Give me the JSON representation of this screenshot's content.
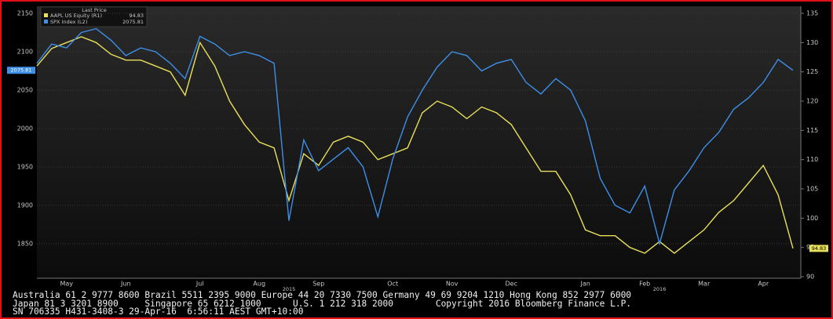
{
  "chart_data": {
    "type": "line",
    "legend_title": "Last Price",
    "categories": [
      null,
      null,
      "May",
      null,
      null,
      null,
      "Jun",
      null,
      null,
      null,
      null,
      "Jul",
      null,
      null,
      null,
      "Aug",
      null,
      null,
      null,
      "Sep",
      null,
      null,
      null,
      null,
      "Oct",
      null,
      null,
      null,
      "Nov",
      null,
      null,
      null,
      "Dec",
      null,
      null,
      null,
      null,
      "Jan",
      null,
      null,
      null,
      "Feb",
      null,
      null,
      null,
      "Mar",
      null,
      null,
      null,
      "Apr",
      null,
      null
    ],
    "years": [
      null,
      null,
      null,
      null,
      null,
      null,
      null,
      null,
      null,
      null,
      null,
      null,
      null,
      null,
      null,
      null,
      null,
      "2015",
      null,
      null,
      null,
      null,
      null,
      null,
      null,
      null,
      null,
      null,
      null,
      null,
      null,
      null,
      null,
      null,
      null,
      null,
      null,
      null,
      null,
      null,
      null,
      null,
      "2016",
      null,
      null,
      null,
      null,
      null,
      null,
      null,
      null,
      null
    ],
    "series": [
      {
        "name": "AAPL US Equity (R1)",
        "color": "#e8e05a",
        "axis": "y2",
        "values": [
          126,
          129,
          130,
          131,
          130,
          128,
          127,
          127,
          126,
          125,
          121,
          130,
          126,
          120,
          116,
          113,
          112,
          103,
          111,
          109,
          113,
          114,
          113,
          110,
          111,
          112,
          118,
          120,
          119,
          117,
          119,
          118,
          116,
          112,
          108,
          108,
          104,
          98,
          97,
          97,
          95,
          94,
          96,
          94,
          96,
          98,
          101,
          103,
          106,
          109,
          104,
          94.83
        ]
      },
      {
        "name": "SPX Index (L2)",
        "color": "#3d8fe8",
        "axis": "y",
        "values": [
          2085,
          2110,
          2105,
          2125,
          2130,
          2115,
          2095,
          2105,
          2100,
          2085,
          2065,
          2120,
          2110,
          2095,
          2100,
          2095,
          2085,
          1880,
          1985,
          1945,
          1960,
          1975,
          1950,
          1885,
          1960,
          2015,
          2050,
          2080,
          2100,
          2095,
          2075,
          2085,
          2090,
          2060,
          2045,
          2065,
          2050,
          2010,
          1935,
          1900,
          1890,
          1925,
          1850,
          1920,
          1945,
          1975,
          1995,
          2025,
          2040,
          2060,
          2090,
          2075.81
        ]
      }
    ],
    "ylim": [
      1807,
      2150
    ],
    "yticks": [
      1850,
      1900,
      1950,
      2000,
      2050,
      2100,
      2150
    ],
    "y2lim": [
      90,
      135
    ],
    "y2ticks": [
      90,
      95,
      100,
      105,
      110,
      115,
      120,
      125,
      130,
      135
    ],
    "grid": true,
    "footer": [
      "Australia 61 2 9777 8600 Brazil 5511 2395 9000 Europe 44 20 7330 7500 Germany 49 69 9204 1210 Hong Kong 852 2977 6000",
      "Japan 81 3 3201 8900     Singapore 65 6212 1000      U.S. 1 212 318 2000        Copyright 2016 Bloomberg Finance L.P.",
      "SN 706335 H431-3408-3 29-Apr-16  6:56:11 AEST GMT+10:00"
    ]
  }
}
